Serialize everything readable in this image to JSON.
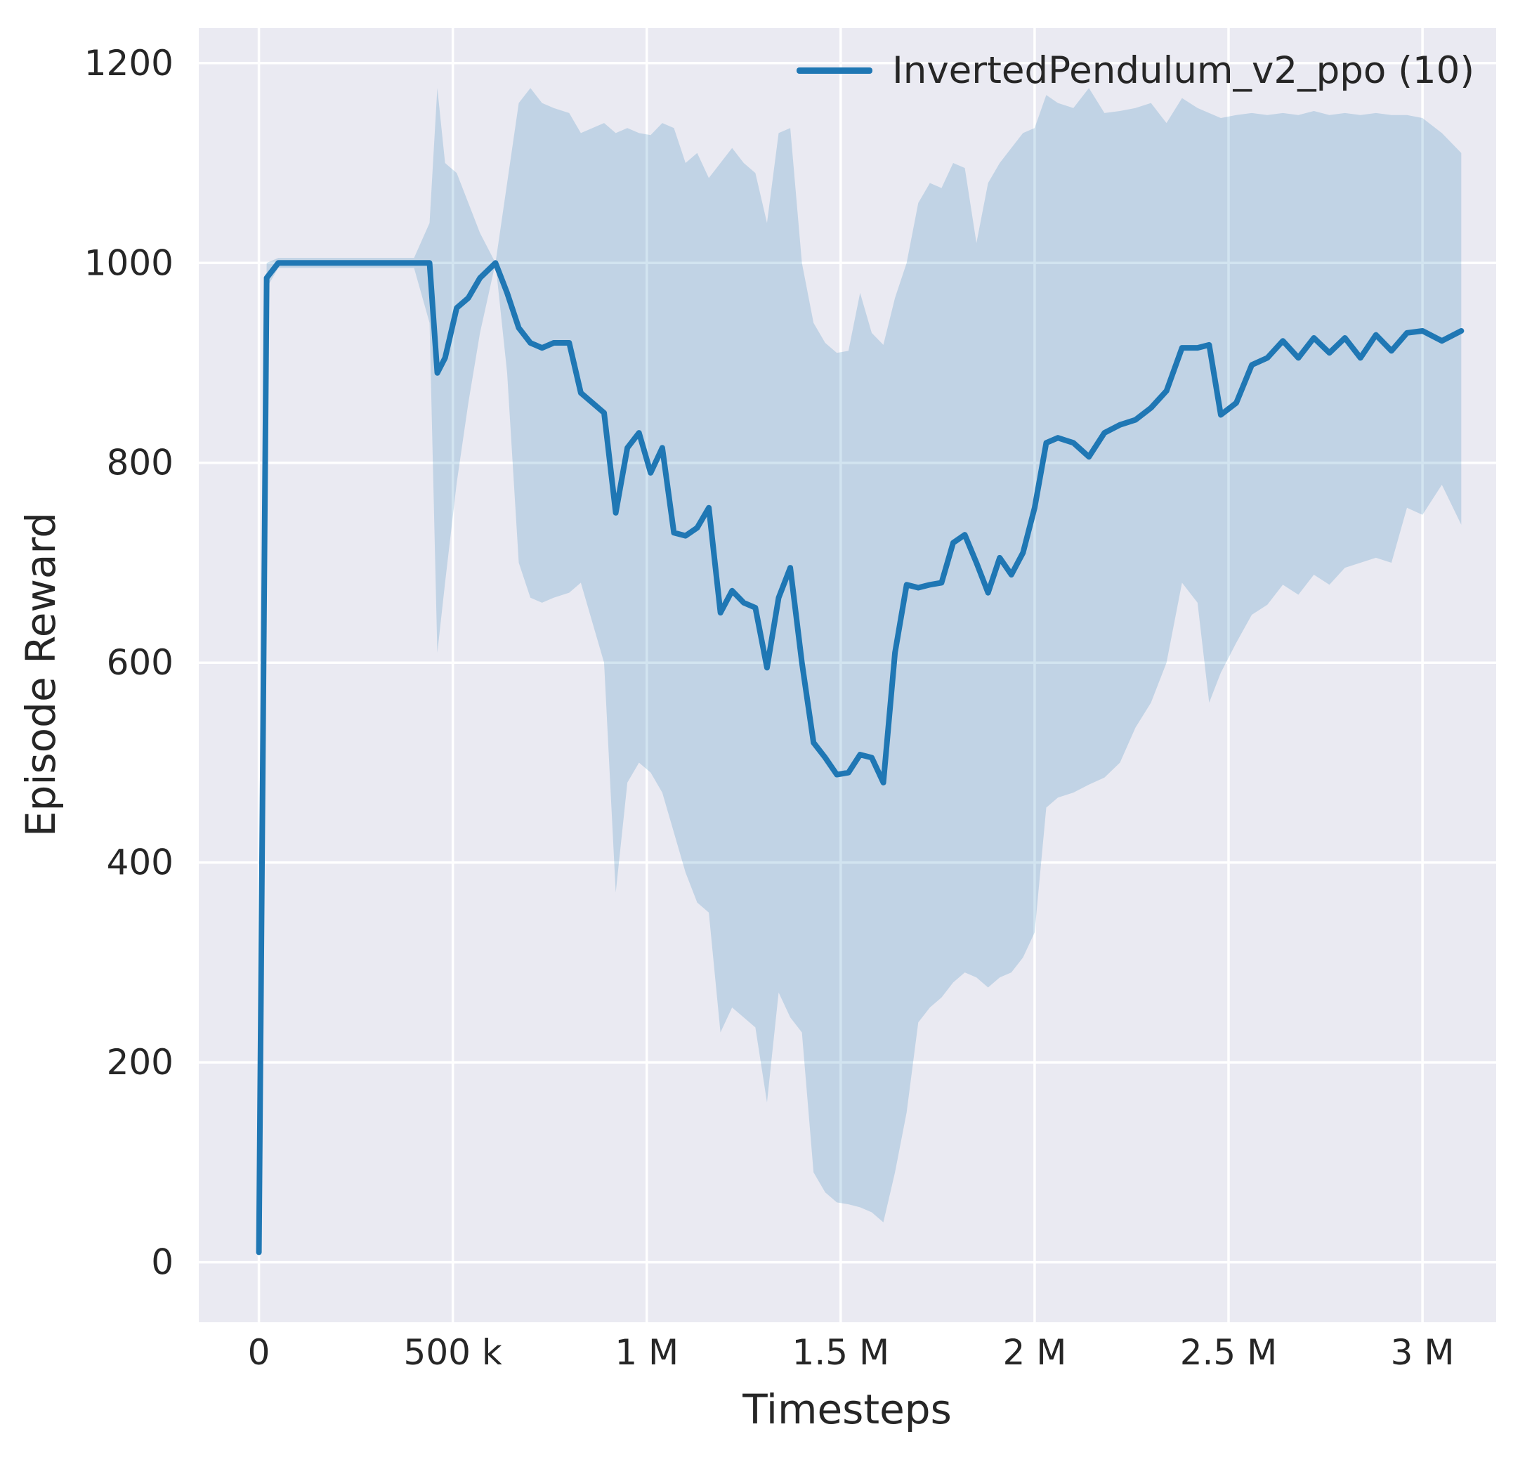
{
  "figure": {
    "background": "#ffffff"
  },
  "colors": {
    "axes_background": "#eaeaf2",
    "grid": "#ffffff",
    "text": "#262626",
    "line": "#1f77b4"
  },
  "chart_data": {
    "type": "line",
    "title": "",
    "xlabel": "Timesteps",
    "ylabel": "Episode Reward",
    "grid": true,
    "legend_position": "upper right",
    "xlim": [
      -155000,
      3190000
    ],
    "ylim": [
      -60,
      1235
    ],
    "x_ticks": {
      "values": [
        0,
        500000,
        1000000,
        1500000,
        2000000,
        2500000,
        3000000
      ],
      "labels": [
        "0",
        "500 k",
        "1 M",
        "1.5 M",
        "2 M",
        "2.5 M",
        "3 M"
      ]
    },
    "y_ticks": {
      "values": [
        0,
        200,
        400,
        600,
        800,
        1000,
        1200
      ],
      "labels": [
        "0",
        "200",
        "400",
        "600",
        "800",
        "1000",
        "1200"
      ]
    },
    "series": [
      {
        "name": "InvertedPendulum_v2_ppo (10)",
        "color": "#1f77b4",
        "line_width": 8,
        "band_opacity": 0.2,
        "x": [
          0,
          20000,
          50000,
          100000,
          200000,
          300000,
          400000,
          440000,
          460000,
          480000,
          510000,
          540000,
          570000,
          610000,
          640000,
          670000,
          700000,
          730000,
          760000,
          800000,
          830000,
          860000,
          890000,
          920000,
          950000,
          980000,
          1010000,
          1040000,
          1070000,
          1100000,
          1130000,
          1160000,
          1190000,
          1220000,
          1250000,
          1280000,
          1310000,
          1340000,
          1370000,
          1400000,
          1430000,
          1460000,
          1490000,
          1520000,
          1550000,
          1580000,
          1610000,
          1640000,
          1670000,
          1700000,
          1730000,
          1760000,
          1790000,
          1820000,
          1850000,
          1880000,
          1910000,
          1940000,
          1970000,
          2000000,
          2030000,
          2060000,
          2100000,
          2140000,
          2180000,
          2220000,
          2260000,
          2300000,
          2340000,
          2380000,
          2420000,
          2450000,
          2480000,
          2520000,
          2560000,
          2600000,
          2640000,
          2680000,
          2720000,
          2760000,
          2800000,
          2840000,
          2880000,
          2920000,
          2960000,
          3000000,
          3050000,
          3100000
        ],
        "y": [
          10,
          985,
          1000,
          1000,
          1000,
          1000,
          1000,
          1000,
          890,
          905,
          955,
          965,
          985,
          1000,
          970,
          935,
          920,
          915,
          920,
          920,
          870,
          860,
          850,
          750,
          815,
          830,
          790,
          815,
          730,
          727,
          735,
          755,
          650,
          672,
          660,
          655,
          595,
          665,
          695,
          600,
          520,
          505,
          488,
          490,
          508,
          505,
          480,
          610,
          678,
          675,
          678,
          680,
          720,
          728,
          700,
          670,
          705,
          688,
          710,
          755,
          820,
          825,
          820,
          806,
          830,
          838,
          843,
          855,
          872,
          915,
          915,
          918,
          848,
          860,
          898,
          905,
          922,
          905,
          925,
          910,
          925,
          905,
          928,
          912,
          930,
          932,
          922,
          932
        ],
        "band_lower": [
          10,
          975,
          995,
          995,
          995,
          995,
          995,
          940,
          610,
          680,
          780,
          860,
          930,
          1000,
          890,
          700,
          665,
          660,
          665,
          670,
          680,
          640,
          600,
          370,
          480,
          500,
          490,
          470,
          430,
          390,
          360,
          350,
          230,
          255,
          245,
          235,
          160,
          270,
          245,
          230,
          90,
          70,
          60,
          58,
          55,
          50,
          40,
          90,
          150,
          240,
          255,
          265,
          280,
          290,
          285,
          275,
          285,
          290,
          305,
          330,
          455,
          465,
          470,
          478,
          485,
          500,
          535,
          560,
          600,
          680,
          660,
          560,
          590,
          620,
          648,
          658,
          678,
          668,
          688,
          678,
          695,
          700,
          705,
          700,
          755,
          748,
          778,
          738
        ],
        "band_upper": [
          10,
          1000,
          1005,
          1005,
          1005,
          1005,
          1005,
          1040,
          1175,
          1100,
          1090,
          1060,
          1030,
          1000,
          1080,
          1160,
          1175,
          1160,
          1155,
          1150,
          1130,
          1135,
          1140,
          1130,
          1135,
          1130,
          1128,
          1140,
          1135,
          1100,
          1110,
          1085,
          1100,
          1115,
          1100,
          1090,
          1040,
          1130,
          1135,
          1000,
          940,
          920,
          910,
          912,
          970,
          930,
          918,
          965,
          1000,
          1060,
          1080,
          1075,
          1100,
          1095,
          1020,
          1080,
          1100,
          1115,
          1130,
          1135,
          1168,
          1160,
          1155,
          1175,
          1150,
          1152,
          1155,
          1160,
          1140,
          1165,
          1155,
          1150,
          1145,
          1148,
          1150,
          1148,
          1150,
          1148,
          1152,
          1148,
          1150,
          1148,
          1150,
          1148,
          1148,
          1145,
          1130,
          1110
        ]
      }
    ]
  }
}
